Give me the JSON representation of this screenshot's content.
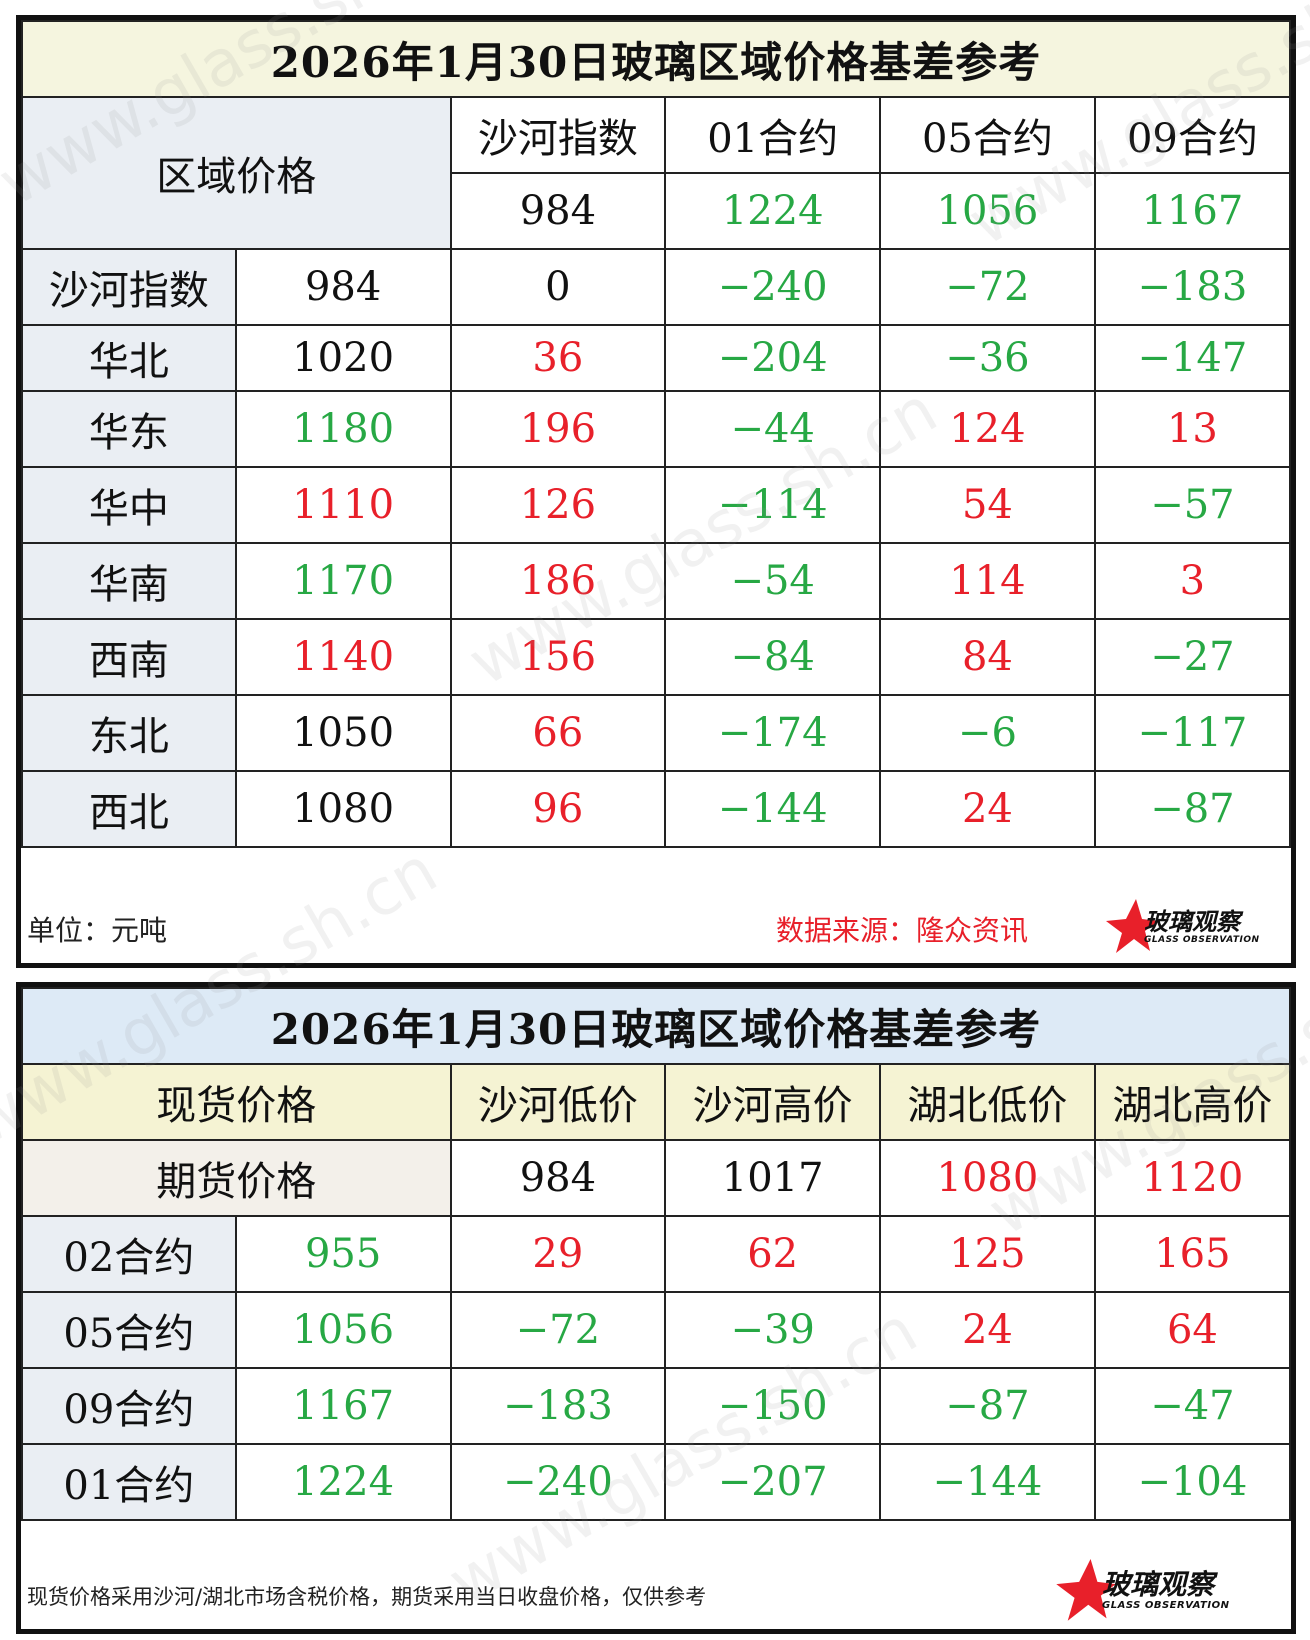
{
  "panel1": {
    "title": "2026年1月30日玻璃区域价格基差参考",
    "corner_label": "区域价格",
    "columns": [
      "沙河指数",
      "01合约",
      "05合约",
      "09合约"
    ],
    "column_values": [
      "984",
      "1224",
      "1056",
      "1167"
    ],
    "rows": [
      {
        "label": "沙河指数",
        "price": "984",
        "basis": [
          "0",
          "-240",
          "-72",
          "-183"
        ]
      },
      {
        "label": "华北",
        "price": "1020",
        "basis": [
          "36",
          "-204",
          "-36",
          "-147"
        ]
      },
      {
        "label": "华东",
        "price": "1180",
        "basis": [
          "196",
          "-44",
          "124",
          "13"
        ]
      },
      {
        "label": "华中",
        "price": "1110",
        "basis": [
          "126",
          "-114",
          "54",
          "-57"
        ]
      },
      {
        "label": "华南",
        "price": "1170",
        "basis": [
          "186",
          "-54",
          "114",
          "3"
        ]
      },
      {
        "label": "西南",
        "price": "1140",
        "basis": [
          "156",
          "-84",
          "84",
          "-27"
        ]
      },
      {
        "label": "东北",
        "price": "1050",
        "basis": [
          "66",
          "-174",
          "-6",
          "-117"
        ]
      },
      {
        "label": "西北",
        "price": "1080",
        "basis": [
          "96",
          "-144",
          "24",
          "-87"
        ]
      }
    ],
    "unit_note": "单位：元吨",
    "source_note": "数据来源：隆众资讯"
  },
  "panel2": {
    "title": "2026年1月30日玻璃区域价格基差参考",
    "spot_label": "现货价格",
    "futures_label": "期货价格",
    "columns": [
      "沙河低价",
      "沙河高价",
      "湖北低价",
      "湖北高价"
    ],
    "column_values": [
      "984",
      "1017",
      "1080",
      "1120"
    ],
    "rows": [
      {
        "label": "02合约",
        "price": "955",
        "basis": [
          "29",
          "62",
          "125",
          "165"
        ]
      },
      {
        "label": "05合约",
        "price": "1056",
        "basis": [
          "-72",
          "-39",
          "24",
          "64"
        ]
      },
      {
        "label": "09合约",
        "price": "1167",
        "basis": [
          "-183",
          "-150",
          "-87",
          "-47"
        ]
      },
      {
        "label": "01合约",
        "price": "1224",
        "basis": [
          "-240",
          "-207",
          "-144",
          "-104"
        ]
      }
    ],
    "note": "现货价格采用沙河/湖北市场含税价格，期货采用当日收盘价格，仅供参考"
  },
  "logo": {
    "cn": "玻璃观察",
    "en": "GLASS OBSERVATION"
  },
  "watermark": "www.glass.sh.cn",
  "colors": {
    "positive": "#e8202a",
    "negative": "#27a844",
    "neutral": "#111111"
  }
}
